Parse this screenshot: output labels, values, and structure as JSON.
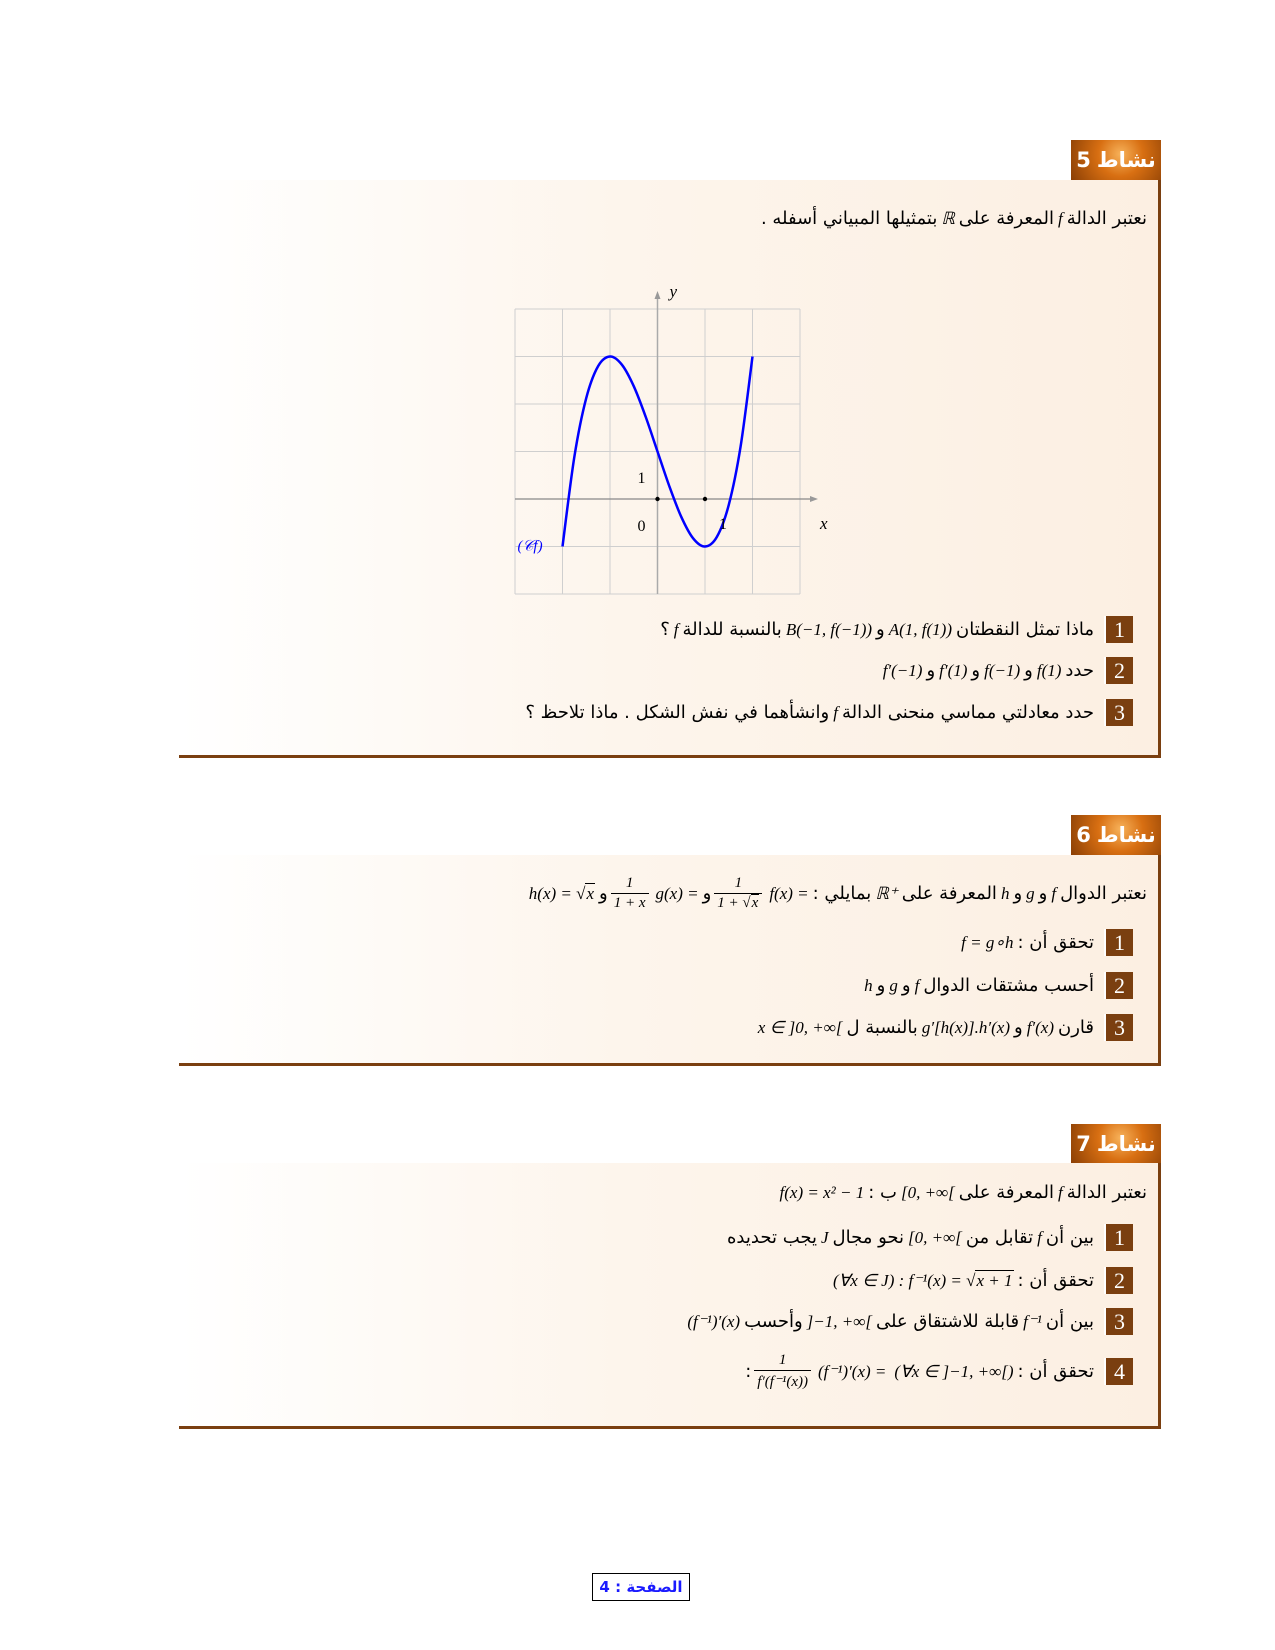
{
  "activities": [
    {
      "title": "نشاط",
      "number": "5",
      "intro": [
        {
          "t": "a",
          "v": "نعتبر الدالة"
        },
        {
          "t": "m",
          "v": "f"
        },
        {
          "t": "a",
          "v": "المعرفة على"
        },
        {
          "t": "m",
          "v": "ℝ"
        },
        {
          "t": "a",
          "v": "بتمثيلها المبياني أسفله ."
        }
      ],
      "items": [
        {
          "n": "1",
          "seg": [
            {
              "t": "a",
              "v": "ماذا تمثل النقطتان"
            },
            {
              "t": "m",
              "v": "A(1, f(1))"
            },
            {
              "t": "a",
              "v": "و"
            },
            {
              "t": "m",
              "v": "B(−1, f(−1))"
            },
            {
              "t": "a",
              "v": "بالنسبة للدالة"
            },
            {
              "t": "m",
              "v": "f"
            },
            {
              "t": "a",
              "v": "؟"
            }
          ]
        },
        {
          "n": "2",
          "seg": [
            {
              "t": "a",
              "v": "حدد"
            },
            {
              "t": "m",
              "v": "f(1)"
            },
            {
              "t": "a",
              "v": "و"
            },
            {
              "t": "m",
              "v": "f(−1)"
            },
            {
              "t": "a",
              "v": "و"
            },
            {
              "t": "m",
              "v": "f′(1)"
            },
            {
              "t": "a",
              "v": "و"
            },
            {
              "t": "m",
              "v": "f′(−1)"
            }
          ]
        },
        {
          "n": "3",
          "seg": [
            {
              "t": "a",
              "v": "حدد معادلتي مماسي منحنى الدالة"
            },
            {
              "t": "m",
              "v": "f"
            },
            {
              "t": "a",
              "v": "وانشأهما في نفش الشكل . ماذا تلاحظ ؟"
            }
          ]
        }
      ]
    },
    {
      "title": "نشاط",
      "number": "6",
      "intro": [
        {
          "t": "a",
          "v": "نعتبر الدوال"
        },
        {
          "t": "m",
          "v": "f"
        },
        {
          "t": "a",
          "v": "و"
        },
        {
          "t": "m",
          "v": "g"
        },
        {
          "t": "a",
          "v": "و"
        },
        {
          "t": "m",
          "v": "h"
        },
        {
          "t": "a",
          "v": "المعرفة على"
        },
        {
          "t": "m",
          "v": "ℝ⁺"
        },
        {
          "t": "a",
          "v": "بمايلي :"
        },
        {
          "t": "m",
          "v": "f(x) ="
        },
        {
          "t": "frac",
          "n": "1",
          "d": "1 + ",
          "r": "x"
        },
        {
          "t": "a",
          "v": "و"
        },
        {
          "t": "m",
          "v": "g(x) ="
        },
        {
          "t": "frac",
          "n": "1",
          "d": "1 + x"
        },
        {
          "t": "a",
          "v": "و"
        },
        {
          "t": "m",
          "v": "h(x) = √",
          "r": "x"
        }
      ],
      "items": [
        {
          "n": "1",
          "seg": [
            {
              "t": "a",
              "v": "تحقق أن :"
            },
            {
              "t": "m",
              "v": "f = g∘h"
            }
          ]
        },
        {
          "n": "2",
          "seg": [
            {
              "t": "a",
              "v": "أحسب مشتقات الدوال"
            },
            {
              "t": "m",
              "v": "f"
            },
            {
              "t": "a",
              "v": "و"
            },
            {
              "t": "m",
              "v": "g"
            },
            {
              "t": "a",
              "v": "و"
            },
            {
              "t": "m",
              "v": "h"
            }
          ]
        },
        {
          "n": "3",
          "seg": [
            {
              "t": "a",
              "v": "قارن"
            },
            {
              "t": "m",
              "v": "f′(x)"
            },
            {
              "t": "a",
              "v": "و"
            },
            {
              "t": "m",
              "v": "g′[h(x)].h′(x)"
            },
            {
              "t": "a",
              "v": "بالنسبة ل"
            },
            {
              "t": "m",
              "v": "x ∈ ]0, +∞["
            }
          ]
        }
      ]
    },
    {
      "title": "نشاط",
      "number": "7",
      "intro": [
        {
          "t": "a",
          "v": "نعتبر الدالة"
        },
        {
          "t": "m",
          "v": "f"
        },
        {
          "t": "a",
          "v": "المعرفة على"
        },
        {
          "t": "m",
          "v": "[0, +∞["
        },
        {
          "t": "a",
          "v": "ب :"
        },
        {
          "t": "m",
          "v": "f(x) = x² − 1"
        }
      ],
      "items": [
        {
          "n": "1",
          "seg": [
            {
              "t": "a",
              "v": "بين أن"
            },
            {
              "t": "m",
              "v": "f"
            },
            {
              "t": "a",
              "v": "تقابل من"
            },
            {
              "t": "m",
              "v": "[0, +∞["
            },
            {
              "t": "a",
              "v": "نحو مجال"
            },
            {
              "t": "m",
              "v": "J"
            },
            {
              "t": "a",
              "v": "يجب تحديده"
            }
          ]
        },
        {
          "n": "2",
          "seg": [
            {
              "t": "a",
              "v": "تحقق أن :"
            },
            {
              "t": "m",
              "v": "(∀x ∈ J) : f⁻¹(x) = √",
              "r": "x + 1"
            }
          ]
        },
        {
          "n": "3",
          "seg": [
            {
              "t": "a",
              "v": "بين أن"
            },
            {
              "t": "m",
              "v": "f⁻¹"
            },
            {
              "t": "a",
              "v": "قابلة للاشتقاق على"
            },
            {
              "t": "m",
              "v": "]−1, +∞["
            },
            {
              "t": "a",
              "v": "وأحسب"
            },
            {
              "t": "m",
              "v": "(f⁻¹)′(x)"
            }
          ]
        },
        {
          "n": "4",
          "seg": [
            {
              "t": "a",
              "v": "تحقق أن :"
            },
            {
              "t": "m",
              "v": "(∀x ∈ ]−1, +∞[)"
            },
            {
              "t": "m",
              "v": "(f⁻¹)′(x) ="
            },
            {
              "t": "frac",
              "n": "1",
              "d": "f′(f⁻¹(x))"
            },
            {
              "t": "a",
              "v": ":"
            }
          ]
        }
      ]
    }
  ],
  "graph": {
    "x_range": [
      -3,
      3
    ],
    "y_range": [
      -2,
      4
    ],
    "grid": true,
    "axis_x_label": "x",
    "axis_y_label": "y",
    "origin_label": "0",
    "x_unit_label": "1",
    "y_unit_label": "1",
    "curve_label": "(𝒞f)",
    "curve_color": "#0000ff",
    "marked_points": [
      [
        0,
        0
      ],
      [
        1,
        0
      ]
    ],
    "curve_points": [
      [
        -2,
        -1
      ],
      [
        -1.75,
        0.89
      ],
      [
        -1.5,
        2.125
      ],
      [
        -1.25,
        2.797
      ],
      [
        -1,
        3
      ],
      [
        -0.75,
        2.828
      ],
      [
        -0.5,
        2.375
      ],
      [
        -0.25,
        1.734
      ],
      [
        0,
        1
      ],
      [
        0.25,
        0.266
      ],
      [
        0.5,
        -0.375
      ],
      [
        0.75,
        -0.828
      ],
      [
        1,
        -1
      ],
      [
        1.25,
        -0.797
      ],
      [
        1.5,
        -0.125
      ],
      [
        1.75,
        1.109
      ],
      [
        2,
        3
      ]
    ]
  },
  "footer": {
    "label": "الصفحة :",
    "page": "4"
  },
  "colors": {
    "accent": "#7a3f10",
    "curve": "#0000ff",
    "footer_text": "#1a1aff"
  }
}
